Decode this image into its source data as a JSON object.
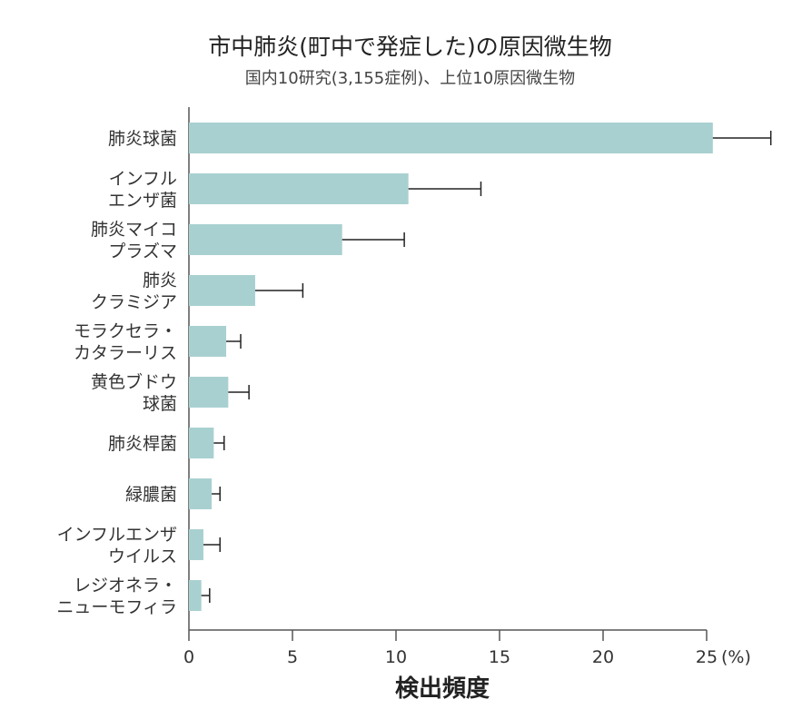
{
  "chart_data": {
    "type": "bar",
    "orientation": "horizontal",
    "title": "市中肺炎(町中で発症した)の原因微生物",
    "subtitle": "国内10研究(3,155症例)、上位10原因微生物",
    "xlabel": "検出頻度",
    "x_unit": "(%)",
    "xlim": [
      0,
      25
    ],
    "xticks": [
      "0",
      "5",
      "10",
      "15",
      "20",
      "25"
    ],
    "categories": [
      [
        "肺炎球菌"
      ],
      [
        "インフル",
        "エンザ菌"
      ],
      [
        "肺炎マイコ",
        "プラズマ"
      ],
      [
        "肺炎",
        "クラミジア"
      ],
      [
        "モラクセラ・",
        "カタラーリス"
      ],
      [
        "黄色ブドウ",
        "球菌"
      ],
      [
        "肺炎桿菌"
      ],
      [
        "緑膿菌"
      ],
      [
        "インフルエンザ",
        "ウイルス"
      ],
      [
        "レジオネラ・",
        "ニューモフィラ"
      ]
    ],
    "values": [
      25.3,
      10.6,
      7.4,
      3.2,
      1.8,
      1.9,
      1.2,
      1.1,
      0.7,
      0.6
    ],
    "error_upper": [
      28.1,
      14.1,
      10.4,
      5.5,
      2.5,
      2.9,
      1.7,
      1.5,
      1.5,
      1.0
    ],
    "bar_color": "#a9d0d0",
    "grid": false
  }
}
